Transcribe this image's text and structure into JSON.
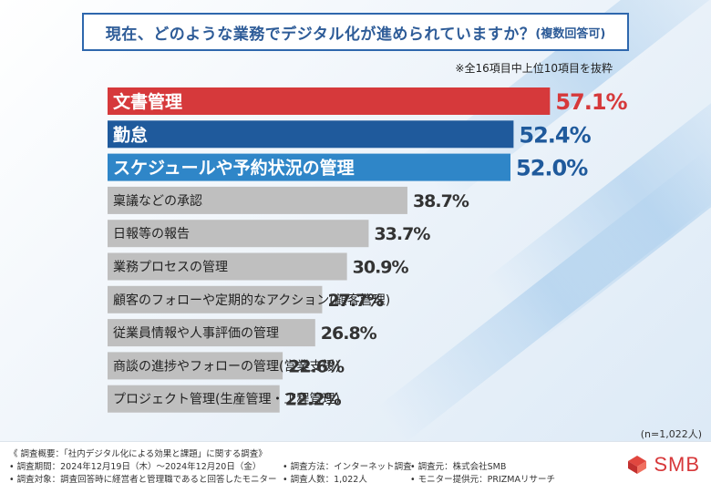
{
  "header": {
    "title_main": "現在、どのような業務でデジタル化が進められていますか？",
    "title_sub": "(複数回答可)"
  },
  "note": "※全16項目中上位10項目を抜粋",
  "n_note": "(n=1,022人)",
  "colors": {
    "highlight_red": "#d6393b",
    "dark_blue": "#1f5a9c",
    "mid_blue": "#2f86c8",
    "gray": "#bfbfbf",
    "title_blue": "#2e5c98"
  },
  "chart_data": {
    "type": "bar",
    "orientation": "horizontal",
    "unit": "%",
    "xlim": [
      0,
      100
    ],
    "categories": [
      "文書管理",
      "勤怠",
      "スケジュールや予約状況の管理",
      "稟議などの承認",
      "日報等の報告",
      "業務プロセスの管理",
      "顧客のフォローや定期的なアクション(顧客管理)",
      "従業員情報や人事評価の管理",
      "商談の進捗やフォローの管理(営業支援)",
      "プロジェクト管理(生産管理・工程管理)"
    ],
    "values": [
      57.1,
      52.4,
      52.0,
      38.7,
      33.7,
      30.9,
      27.7,
      26.8,
      22.6,
      22.2
    ],
    "value_labels": [
      "57.1%",
      "52.4%",
      "52.0%",
      "38.7%",
      "33.7%",
      "30.9%",
      "27.7%",
      "26.8%",
      "22.6%",
      "22.2%"
    ]
  },
  "footer": {
    "summary": "《 調査概要：「社内デジタル化による効果と課題」に関する調査》",
    "period": "• 調査期間：2024年12月19日（木）～2024年12月20日（金）",
    "method": "• 調査方法：インターネット調査",
    "source": "• 調査元：株式会社SMB",
    "target": "• 調査対象：調査回答時に経営者と管理職であると回答したモニター",
    "count": "• 調査人数：1,022人",
    "provider": "• モニター提供元：PRIZMAリサーチ"
  },
  "logo": {
    "text": "SMB"
  }
}
